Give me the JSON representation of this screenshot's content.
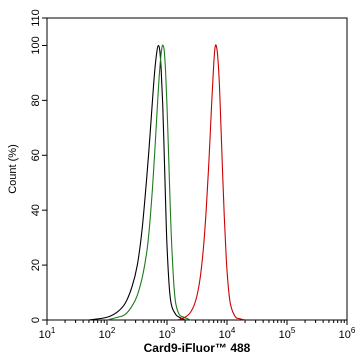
{
  "chart_data": {
    "type": "line",
    "title": "",
    "xlabel": "Card9-iFluor™ 488",
    "ylabel": "Count (%)",
    "xscale": "log",
    "xlim": [
      10,
      1000000
    ],
    "ylim": [
      0,
      110
    ],
    "grid": false,
    "legend": "none",
    "x_ticks": [
      {
        "value": 10,
        "base": "10",
        "exp": "1"
      },
      {
        "value": 100,
        "base": "10",
        "exp": "2"
      },
      {
        "value": 1000,
        "base": "10",
        "exp": "3"
      },
      {
        "value": 10000,
        "base": "10",
        "exp": "4"
      },
      {
        "value": 100000,
        "base": "10",
        "exp": "5"
      },
      {
        "value": 1000000,
        "base": "10",
        "exp": "6"
      }
    ],
    "y_ticks": [
      {
        "value": 0,
        "label": "0"
      },
      {
        "value": 20,
        "label": "20"
      },
      {
        "value": 40,
        "label": "40"
      },
      {
        "value": 60,
        "label": "60"
      },
      {
        "value": 80,
        "label": "80"
      },
      {
        "value": 100,
        "label": "100"
      },
      {
        "value": 110,
        "label": "110"
      }
    ],
    "series": [
      {
        "color": "#000000",
        "x": [
          50,
          100,
          150,
          200,
          260,
          320,
          380,
          440,
          500,
          560,
          620,
          680,
          720,
          760,
          800,
          850,
          900,
          950,
          1000,
          1100,
          1200,
          1400,
          1600,
          2000
        ],
        "y": [
          0,
          1,
          3,
          6,
          12,
          20,
          32,
          47,
          62,
          77,
          90,
          98,
          100,
          98,
          91,
          78,
          60,
          42,
          27,
          11,
          5,
          2,
          1,
          0
        ]
      },
      {
        "color": "#1f7a1f",
        "x": [
          100,
          150,
          200,
          260,
          320,
          400,
          480,
          560,
          640,
          700,
          760,
          820,
          860,
          900,
          950,
          1000,
          1050,
          1100,
          1150,
          1200,
          1300,
          1400,
          1600,
          1900,
          2500
        ],
        "y": [
          0,
          1,
          2,
          5,
          9,
          17,
          28,
          45,
          65,
          80,
          92,
          99,
          100,
          98,
          90,
          78,
          64,
          50,
          37,
          27,
          13,
          6,
          2,
          1,
          0
        ]
      },
      {
        "color": "#cc0000",
        "x": [
          1500,
          2000,
          2500,
          3000,
          3500,
          4000,
          4500,
          5000,
          5500,
          6000,
          6300,
          6600,
          7000,
          7500,
          8000,
          8500,
          9000,
          9500,
          10000,
          11000,
          12000,
          14000,
          16000,
          20000
        ],
        "y": [
          0,
          1,
          3,
          7,
          14,
          25,
          40,
          58,
          77,
          93,
          99,
          100,
          96,
          85,
          68,
          52,
          38,
          27,
          18,
          8,
          4,
          1,
          0.5,
          0
        ]
      }
    ]
  }
}
